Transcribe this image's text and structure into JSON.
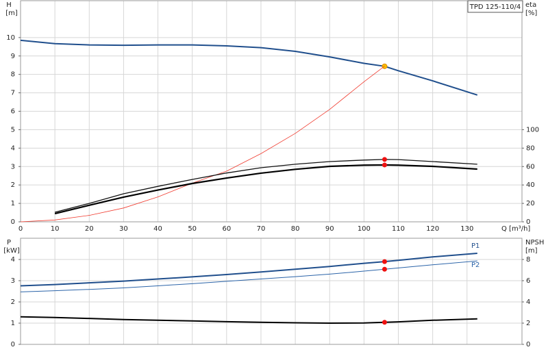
{
  "chart_data": [
    {
      "type": "line",
      "model": "TPD 125-110/4",
      "y_label": "H",
      "y_unit": "[m]",
      "y2_label": "eta",
      "y2_unit": "[%]",
      "x_label": "Q [m³/h]",
      "xlim": [
        0,
        146
      ],
      "xticks": [
        0,
        10,
        20,
        30,
        40,
        50,
        60,
        70,
        80,
        90,
        100,
        110,
        120,
        130
      ],
      "show_x_tick_labels": true,
      "ylim": [
        0,
        12
      ],
      "yticks": [
        0,
        1,
        2,
        3,
        4,
        5,
        6,
        7,
        8,
        9,
        10
      ],
      "y2lim": [
        0,
        240
      ],
      "y2ticks": [
        0,
        20,
        40,
        60,
        80,
        100
      ],
      "grid": true,
      "x": [
        0,
        10,
        20,
        30,
        40,
        50,
        60,
        70,
        80,
        90,
        100,
        106,
        110,
        120,
        133
      ],
      "series": [
        {
          "color": "#1f4e8c",
          "width": 2,
          "axis": "y",
          "values": [
            9.85,
            9.67,
            9.6,
            9.58,
            9.6,
            9.6,
            9.55,
            9.45,
            9.25,
            8.95,
            8.6,
            8.44,
            8.2,
            7.65,
            6.88
          ],
          "point": {
            "x": 106,
            "y": 8.44,
            "color": "#f6c000"
          }
        },
        {
          "color": "#f03a2e",
          "width": 0.8,
          "axis": "y2",
          "values": [
            0,
            2,
            7,
            15,
            27,
            42,
            55,
            74,
            96,
            122,
            152,
            169,
            null,
            null,
            null
          ]
        },
        {
          "color": "#111111",
          "width": 1.3,
          "axis": "y2",
          "values": [
            null,
            10.4,
            20,
            30.5,
            38.5,
            46,
            53,
            58.7,
            62.5,
            65.4,
            67,
            67.7,
            67.5,
            65.4,
            62.5
          ],
          "point": {
            "x": 106,
            "y": 67.7,
            "color": "#ee1111"
          }
        },
        {
          "color": "#000000",
          "width": 2.2,
          "axis": "y2",
          "values": [
            null,
            8.9,
            18,
            26.8,
            34.5,
            41.6,
            47.5,
            52.8,
            57,
            60.2,
            61.5,
            61.7,
            61.5,
            60.2,
            57.2
          ],
          "point": {
            "x": 106,
            "y": 61.7,
            "color": "#ee1111"
          }
        }
      ]
    },
    {
      "type": "line",
      "y_label": "P",
      "y_unit": "[kW]",
      "y2_label": "NPSH",
      "y2_unit": "[m]",
      "xlim": [
        0,
        146
      ],
      "xticks": [
        0,
        10,
        20,
        30,
        40,
        50,
        60,
        70,
        80,
        90,
        100,
        110,
        120,
        130
      ],
      "show_x_tick_labels": false,
      "ylim": [
        0,
        5
      ],
      "yticks": [
        0,
        1,
        2,
        3,
        4
      ],
      "y2lim": [
        0,
        10
      ],
      "y2ticks": [
        0,
        2,
        4,
        6,
        8
      ],
      "grid": true,
      "x": [
        0,
        10,
        20,
        30,
        40,
        50,
        60,
        70,
        80,
        90,
        100,
        106,
        110,
        120,
        133
      ],
      "series": [
        {
          "name": "P1",
          "label_side": "above",
          "color": "#1f4e8c",
          "width": 2,
          "axis": "y",
          "values": [
            2.76,
            2.82,
            2.9,
            2.98,
            3.08,
            3.18,
            3.29,
            3.41,
            3.54,
            3.67,
            3.82,
            3.9,
            3.96,
            4.12,
            4.29
          ],
          "point": {
            "x": 106,
            "y": 3.9,
            "color": "#ee1111"
          }
        },
        {
          "name": "P2",
          "label_side": "below",
          "color": "#2a63a8",
          "width": 1,
          "axis": "y",
          "values": [
            2.47,
            2.53,
            2.59,
            2.66,
            2.76,
            2.86,
            2.97,
            3.08,
            3.19,
            3.31,
            3.45,
            3.54,
            3.6,
            3.75,
            3.93
          ],
          "point": {
            "x": 106,
            "y": 3.54,
            "color": "#ee1111"
          }
        },
        {
          "color": "#000000",
          "width": 2,
          "axis": "y2",
          "values": [
            2.6,
            2.53,
            2.44,
            2.34,
            2.27,
            2.21,
            2.14,
            2.08,
            2.03,
            2.0,
            2.02,
            2.08,
            2.12,
            2.27,
            2.4
          ],
          "point": {
            "x": 106,
            "y": 2.08,
            "color": "#ee1111"
          }
        }
      ]
    }
  ]
}
